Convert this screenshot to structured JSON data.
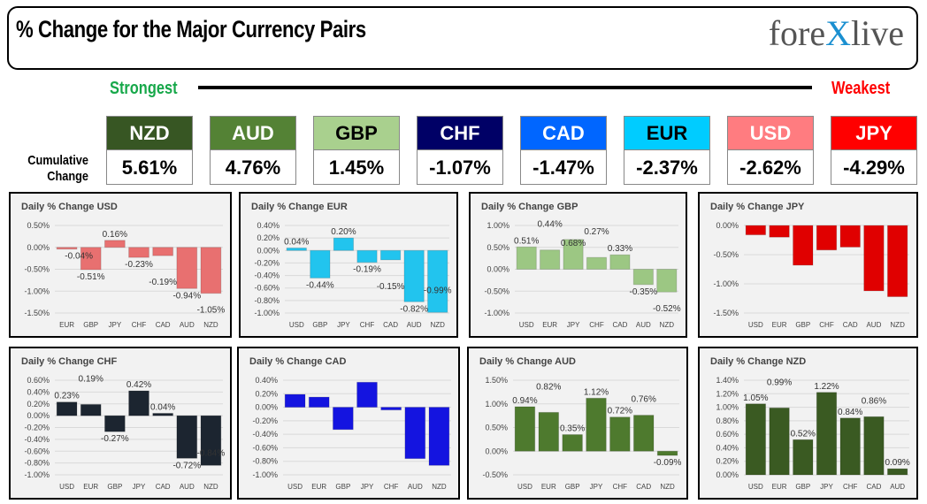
{
  "header": {
    "title": "% Change for the Major Currency Pairs",
    "logo": "forexlive"
  },
  "strongest": "Strongest",
  "weakest": "Weakest",
  "cumulative_label": [
    "Cumulative",
    "Change"
  ],
  "currencies": [
    {
      "code": "NZD",
      "value": "5.61%",
      "color": "#375623",
      "text": "#fff"
    },
    {
      "code": "AUD",
      "value": "4.76%",
      "color": "#548235",
      "text": "#fff"
    },
    {
      "code": "GBP",
      "value": "1.45%",
      "color": "#a9d08e",
      "text": "#000"
    },
    {
      "code": "CHF",
      "value": "-1.07%",
      "color": "#000066",
      "text": "#fff"
    },
    {
      "code": "CAD",
      "value": "-1.47%",
      "color": "#0066ff",
      "text": "#fff"
    },
    {
      "code": "EUR",
      "value": "-2.37%",
      "color": "#00ccff",
      "text": "#000"
    },
    {
      "code": "USD",
      "value": "-2.62%",
      "color": "#ff7c80",
      "text": "#fff"
    },
    {
      "code": "JPY",
      "value": "-4.29%",
      "color": "#ff0000",
      "text": "#fff"
    }
  ],
  "chart_data": [
    {
      "type": "bar",
      "title": "Daily % Change USD",
      "color": "#e87070",
      "categories": [
        "EUR",
        "GBP",
        "JPY",
        "CHF",
        "CAD",
        "AUD",
        "NZD"
      ],
      "values": [
        -0.04,
        -0.51,
        0.16,
        -0.23,
        -0.19,
        -0.94,
        -1.05
      ],
      "ylim": [
        -1.5,
        0.5
      ],
      "ticks": [
        0.5,
        0,
        -0.5,
        -1,
        -1.5
      ],
      "data_labels": true
    },
    {
      "type": "bar",
      "title": "Daily % Change EUR",
      "color": "#22c4ee",
      "categories": [
        "USD",
        "GBP",
        "JPY",
        "CHF",
        "CAD",
        "AUD",
        "NZD"
      ],
      "values": [
        0.04,
        -0.44,
        0.2,
        -0.19,
        -0.15,
        -0.82,
        -0.99
      ],
      "ylim": [
        -1.0,
        0.4
      ],
      "ticks": [
        0.4,
        0.2,
        0,
        -0.2,
        -0.4,
        -0.6,
        -0.8,
        -1.0
      ],
      "data_labels": true
    },
    {
      "type": "bar",
      "title": "Daily % Change GBP",
      "color": "#9cc783",
      "categories": [
        "USD",
        "EUR",
        "JPY",
        "CHF",
        "CAD",
        "AUD",
        "NZD"
      ],
      "values": [
        0.51,
        0.44,
        0.68,
        0.27,
        0.33,
        -0.35,
        -0.52
      ],
      "ylim": [
        -1.0,
        1.0
      ],
      "ticks": [
        1,
        0.5,
        0,
        -0.5,
        -1
      ],
      "data_labels": true
    },
    {
      "type": "bar",
      "title": "Daily % Change JPY",
      "color": "#e00000",
      "categories": [
        "USD",
        "EUR",
        "GBP",
        "CHF",
        "CAD",
        "AUD",
        "NZD"
      ],
      "values": [
        -0.16,
        -0.2,
        -0.68,
        -0.42,
        -0.37,
        -1.12,
        -1.22
      ],
      "ylim": [
        -1.5,
        0
      ],
      "ticks": [
        0,
        -0.5,
        -1,
        -1.5
      ],
      "data_labels": false
    },
    {
      "type": "bar",
      "title": "Daily % Change CHF",
      "color": "#1c2530",
      "categories": [
        "USD",
        "EUR",
        "GBP",
        "JPY",
        "CAD",
        "AUD",
        "NZD"
      ],
      "values": [
        0.23,
        0.19,
        -0.27,
        0.42,
        0.04,
        -0.72,
        -0.84
      ],
      "ylim": [
        -1.0,
        0.6
      ],
      "ticks": [
        0.6,
        0.4,
        0.2,
        0,
        -0.2,
        -0.4,
        -0.6,
        -0.8,
        -1.0
      ],
      "data_labels": true
    },
    {
      "type": "bar",
      "title": "Daily % Change CAD",
      "color": "#1414e0",
      "categories": [
        "USD",
        "EUR",
        "GBP",
        "JPY",
        "CHF",
        "AUD",
        "NZD"
      ],
      "values": [
        0.19,
        0.15,
        -0.33,
        0.37,
        -0.04,
        -0.76,
        -0.86
      ],
      "ylim": [
        -1.0,
        0.4
      ],
      "ticks": [
        0.4,
        0.2,
        0,
        -0.2,
        -0.4,
        -0.6,
        -0.8,
        -1.0
      ],
      "data_labels": false
    },
    {
      "type": "bar",
      "title": "Daily % Change AUD",
      "color": "#4e7a2e",
      "categories": [
        "USD",
        "EUR",
        "GBP",
        "JPY",
        "CHF",
        "CAD",
        "NZD"
      ],
      "values": [
        0.94,
        0.82,
        0.35,
        1.12,
        0.72,
        0.76,
        -0.09
      ],
      "ylim": [
        -0.5,
        1.5
      ],
      "ticks": [
        1.5,
        1,
        0.5,
        0,
        -0.5
      ],
      "data_labels": true
    },
    {
      "type": "bar",
      "title": "Daily % Change NZD",
      "color": "#3a5a22",
      "categories": [
        "USD",
        "EUR",
        "GBP",
        "JPY",
        "CHF",
        "CAD",
        "AUD"
      ],
      "values": [
        1.05,
        0.99,
        0.52,
        1.22,
        0.84,
        0.86,
        0.09
      ],
      "ylim": [
        0,
        1.4
      ],
      "ticks": [
        1.4,
        1.2,
        1,
        0.8,
        0.6,
        0.4,
        0.2,
        0
      ],
      "data_labels": true
    }
  ]
}
